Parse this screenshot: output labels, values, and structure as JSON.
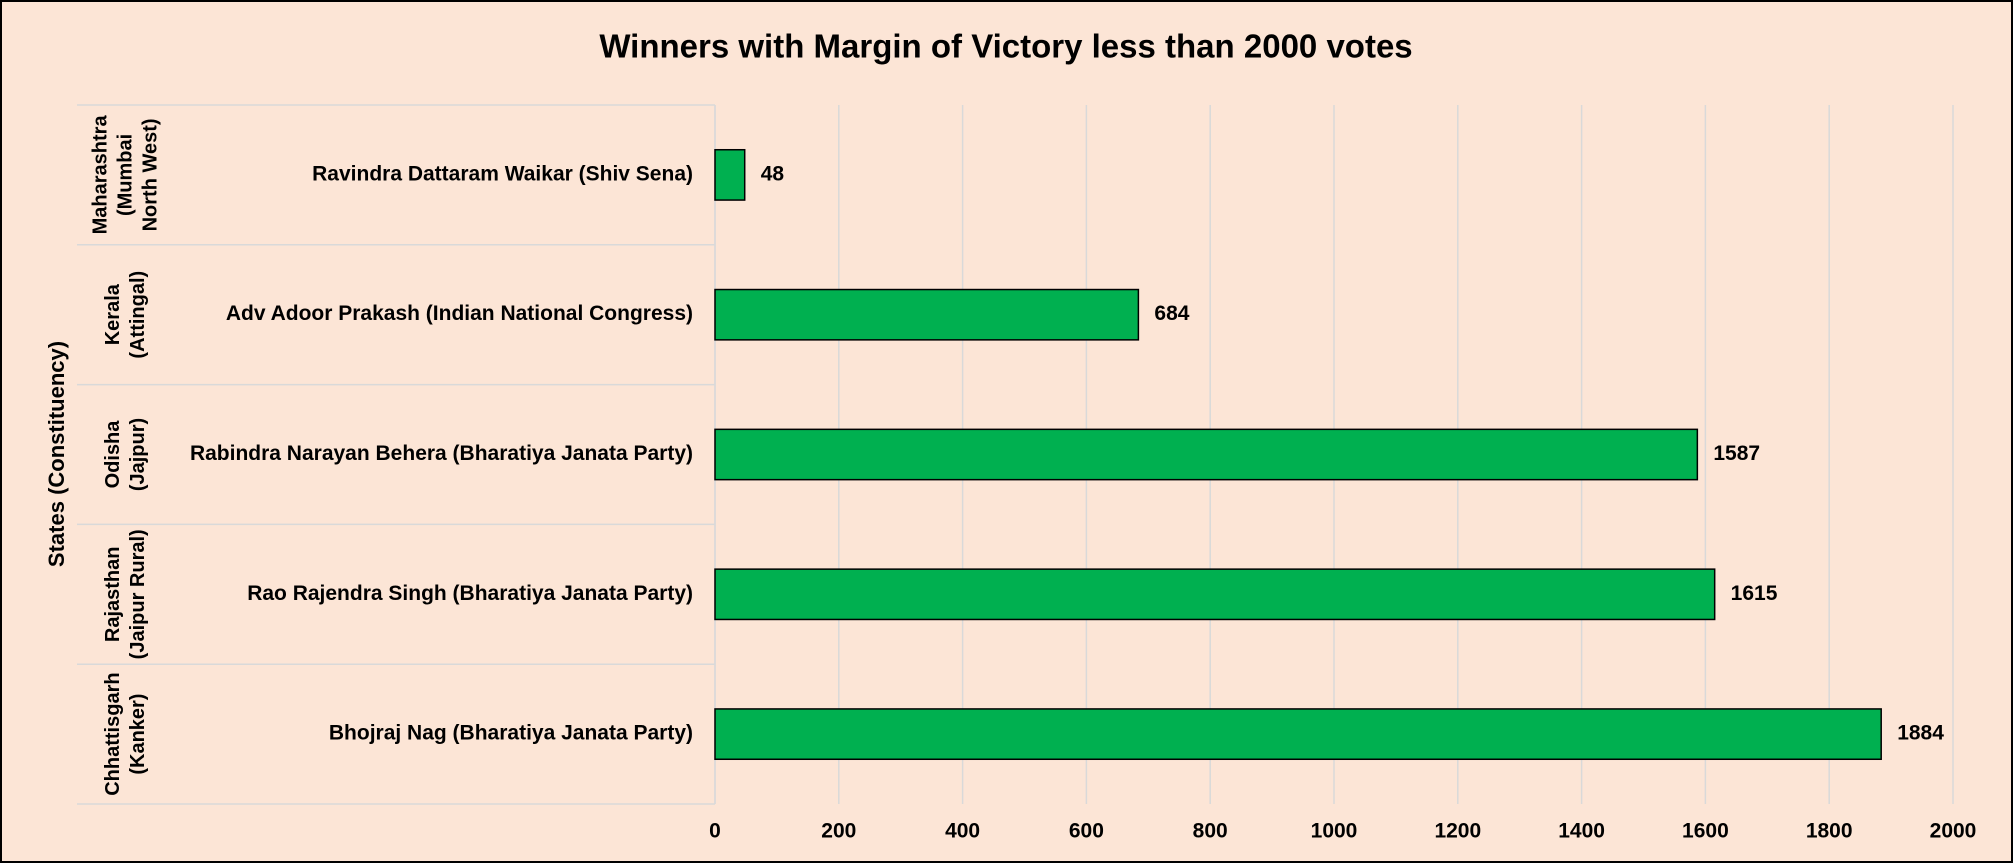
{
  "chart_data": {
    "type": "bar",
    "orientation": "horizontal",
    "title": "Winners with Margin of Victory less than 2000 votes",
    "y_label": "States (Constituency)",
    "categories": [
      "Ravindra Dattaram Waikar (Shiv Sena)",
      "Adv Adoor Prakash (Indian National Congress)",
      "Rabindra Narayan Behera (Bharatiya Janata Party)",
      "Rao Rajendra Singh (Bharatiya Janata Party)",
      "Bhojraj Nag (Bharatiya Janata Party)"
    ],
    "groups": [
      [
        "Maharashtra",
        "(Mumbai",
        "North West)"
      ],
      [
        "Kerala",
        "(Attingal)"
      ],
      [
        "Odisha",
        "(Jajpur)"
      ],
      [
        "Rajasthan",
        "(Jaipur Rural)"
      ],
      [
        "Chhattisgarh",
        "(Kanker)"
      ]
    ],
    "values": [
      48,
      684,
      1587,
      1615,
      1884
    ],
    "color": "#00b050",
    "xlim": [
      0,
      2000
    ],
    "xticks": [
      0,
      200,
      400,
      600,
      800,
      1000,
      1200,
      1400,
      1600,
      1800,
      2000
    ],
    "grid": true
  }
}
